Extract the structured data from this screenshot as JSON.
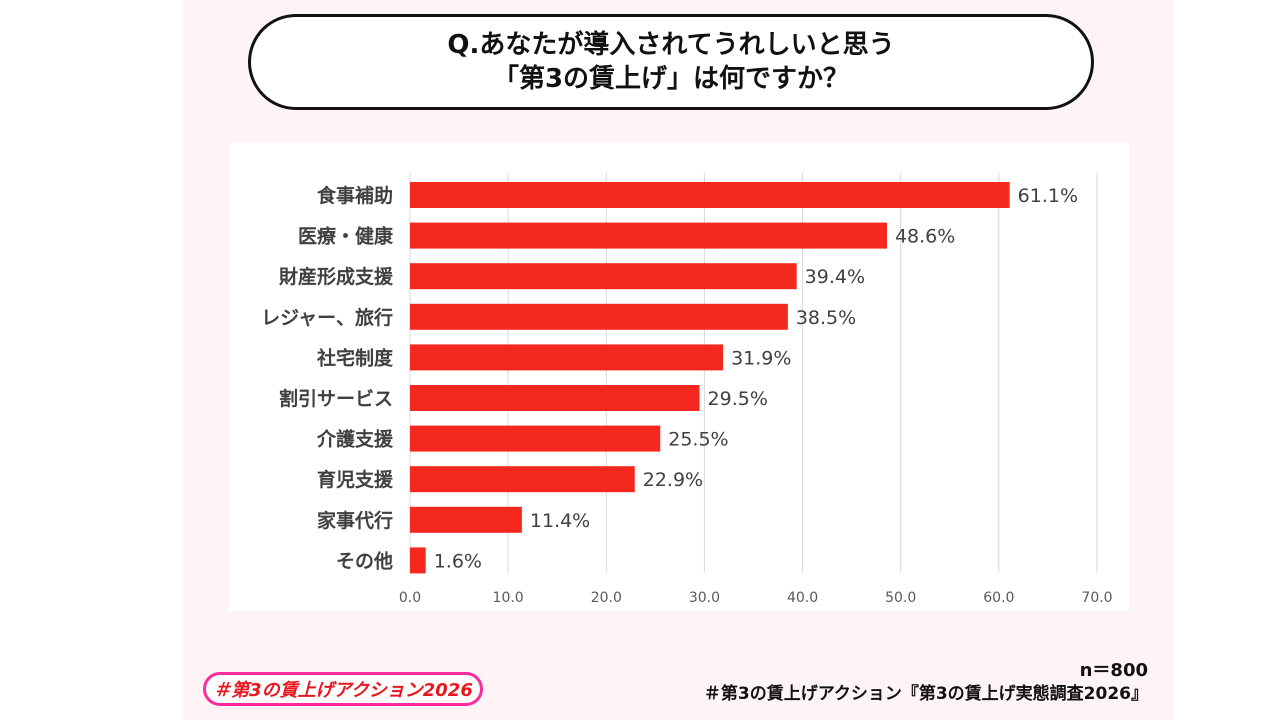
{
  "title": {
    "line1": "Q.あなたが導入されてうれしいと思う",
    "line2": "「第3の賃上げ」は何ですか？"
  },
  "footer": {
    "n": "n＝800",
    "source": "＃第3の賃上げアクション『第3の賃上げ実態調査2026』",
    "badge": "＃第3の賃上げアクション2026"
  },
  "colors": {
    "bar": "#f5281f",
    "grid": "#d9d9d9",
    "badge_border": "#ff2a9d"
  },
  "chart_data": {
    "type": "bar",
    "orientation": "horizontal",
    "categories": [
      "食事補助",
      "医療・健康",
      "財産形成支援",
      "レジャー、旅行",
      "社宅制度",
      "割引サービス",
      "介護支援",
      "育児支援",
      "家事代行",
      "その他"
    ],
    "values": [
      61.1,
      48.6,
      39.4,
      38.5,
      31.9,
      29.5,
      25.5,
      22.9,
      11.4,
      1.6
    ],
    "value_labels": [
      "61.1%",
      "48.6%",
      "39.4%",
      "38.5%",
      "31.9%",
      "29.5%",
      "25.5%",
      "22.9%",
      "11.4%",
      "1.6%"
    ],
    "xlim": [
      0,
      70
    ],
    "xticks": [
      0,
      10,
      20,
      30,
      40,
      50,
      60,
      70
    ],
    "xtick_labels": [
      "0.0",
      "10.0",
      "20.0",
      "30.0",
      "40.0",
      "50.0",
      "60.0",
      "70.0"
    ],
    "grid": "vertical",
    "legend": "none"
  }
}
